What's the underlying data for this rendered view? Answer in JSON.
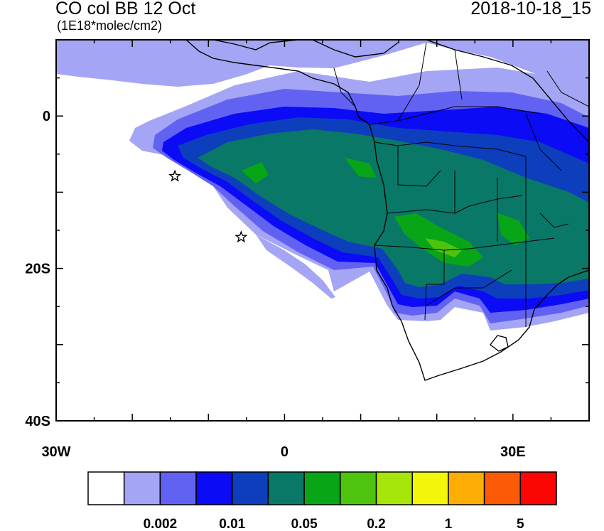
{
  "header": {
    "title": "CO col BB 12 Oct",
    "units": "(1E18*molec/cm2)",
    "timestamp": "2018-10-18_15"
  },
  "map": {
    "extent": {
      "lon": [
        -30,
        40
      ],
      "lat": [
        -40,
        10
      ]
    },
    "lat_ticks": [
      {
        "lat": 0,
        "label": "0"
      },
      {
        "lat": -20,
        "label": "20S"
      },
      {
        "lat": -40,
        "label": "40S"
      }
    ],
    "lon_ticks": [
      {
        "lon": -30,
        "label": "30W"
      },
      {
        "lon": 0,
        "label": "0"
      },
      {
        "lon": 30,
        "label": "30E"
      }
    ],
    "markers": [
      {
        "name": "star",
        "lon": -14.4,
        "lat": -7.9
      },
      {
        "name": "star",
        "lon": -5.7,
        "lat": -15.9
      }
    ]
  },
  "colorbar": {
    "colors": [
      "#ffffff",
      "#a5a5f5",
      "#6262f2",
      "#0b0bf5",
      "#0d3fbd",
      "#0a7866",
      "#08a616",
      "#4ec40f",
      "#a6e50a",
      "#f3f60a",
      "#fcae04",
      "#fc5a06",
      "#fc0505"
    ],
    "labels": [
      {
        "after_box": 2,
        "text": "0.002"
      },
      {
        "after_box": 4,
        "text": "0.01"
      },
      {
        "after_box": 6,
        "text": "0.05"
      },
      {
        "after_box": 8,
        "text": "0.2"
      },
      {
        "after_box": 10,
        "text": "1"
      },
      {
        "after_box": 12,
        "text": "5"
      }
    ]
  }
}
